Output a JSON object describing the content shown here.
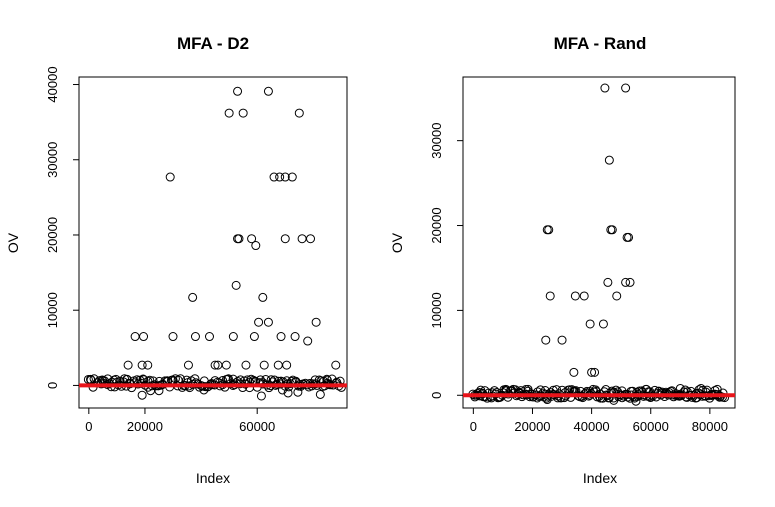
{
  "chart_data": [
    {
      "type": "scatter",
      "title": "MFA - D2",
      "xlabel": "Index",
      "ylabel": "OV",
      "xlim": [
        -3500,
        92000
      ],
      "ylim": [
        -3000,
        41000
      ],
      "xticks": [
        0,
        20000,
        60000
      ],
      "xtick_labels": [
        "0",
        "20000",
        "60000"
      ],
      "yticks": [
        0,
        10000,
        20000,
        30000,
        40000
      ],
      "ytick_labels": [
        "0",
        "10000",
        "20000",
        "30000",
        "40000"
      ],
      "reference_line": {
        "y": 0,
        "color": "#e8141a"
      },
      "band": {
        "x_start": 0,
        "x_end": 90000,
        "y_min": -300,
        "y_max": 900,
        "count": 170,
        "seed": 7
      },
      "series": [
        {
          "values": [
            {
              "x": 5000,
              "y": 600
            },
            {
              "x": 9000,
              "y": 700
            },
            {
              "x": 13500,
              "y": 800
            },
            {
              "x": 14000,
              "y": 2700
            },
            {
              "x": 16500,
              "y": 6500
            },
            {
              "x": 19500,
              "y": 6500
            },
            {
              "x": 19000,
              "y": 2700
            },
            {
              "x": 21000,
              "y": 2700
            },
            {
              "x": 19000,
              "y": -1300
            },
            {
              "x": 22000,
              "y": -700
            },
            {
              "x": 25000,
              "y": -700
            },
            {
              "x": 29000,
              "y": 27700
            },
            {
              "x": 30000,
              "y": 6500
            },
            {
              "x": 35500,
              "y": 2700
            },
            {
              "x": 37000,
              "y": 11700
            },
            {
              "x": 38000,
              "y": 6500
            },
            {
              "x": 41000,
              "y": -600
            },
            {
              "x": 43000,
              "y": 6500
            },
            {
              "x": 45000,
              "y": 2700
            },
            {
              "x": 46000,
              "y": 2700
            },
            {
              "x": 49000,
              "y": 2700
            },
            {
              "x": 50000,
              "y": 36200
            },
            {
              "x": 51500,
              "y": 6500
            },
            {
              "x": 52500,
              "y": 13300
            },
            {
              "x": 53000,
              "y": 19500
            },
            {
              "x": 53500,
              "y": 19500
            },
            {
              "x": 53000,
              "y": 39100
            },
            {
              "x": 55000,
              "y": 36200
            },
            {
              "x": 56000,
              "y": 2700
            },
            {
              "x": 58000,
              "y": 19500
            },
            {
              "x": 59000,
              "y": 6500
            },
            {
              "x": 59500,
              "y": 18600
            },
            {
              "x": 60500,
              "y": 8400
            },
            {
              "x": 61500,
              "y": -1400
            },
            {
              "x": 62000,
              "y": 11700
            },
            {
              "x": 62500,
              "y": 2700
            },
            {
              "x": 64000,
              "y": 39100
            },
            {
              "x": 64000,
              "y": 8400
            },
            {
              "x": 66000,
              "y": 27700
            },
            {
              "x": 67500,
              "y": 2700
            },
            {
              "x": 68000,
              "y": 27700
            },
            {
              "x": 68500,
              "y": 6500
            },
            {
              "x": 69000,
              "y": -600
            },
            {
              "x": 70000,
              "y": 27700
            },
            {
              "x": 70000,
              "y": 19500
            },
            {
              "x": 70500,
              "y": 2700
            },
            {
              "x": 71000,
              "y": -1000
            },
            {
              "x": 72500,
              "y": 27700
            },
            {
              "x": 73500,
              "y": 6500
            },
            {
              "x": 74500,
              "y": -900
            },
            {
              "x": 75000,
              "y": 36200
            },
            {
              "x": 76000,
              "y": 19500
            },
            {
              "x": 78000,
              "y": 5900
            },
            {
              "x": 79000,
              "y": 19500
            },
            {
              "x": 81000,
              "y": 8400
            },
            {
              "x": 82500,
              "y": -1200
            },
            {
              "x": 85000,
              "y": 700
            },
            {
              "x": 88000,
              "y": 2700
            }
          ]
        }
      ]
    },
    {
      "type": "scatter",
      "title": "MFA - Rand",
      "xlabel": "Index",
      "ylabel": "OV",
      "xlim": [
        -3500,
        88500
      ],
      "ylim": [
        -1500,
        37500
      ],
      "xticks": [
        0,
        20000,
        40000,
        60000,
        80000
      ],
      "xtick_labels": [
        "0",
        "20000",
        "40000",
        "60000",
        "80000"
      ],
      "yticks": [
        0,
        10000,
        20000,
        30000
      ],
      "ytick_labels": [
        "0",
        "10000",
        "20000",
        "30000"
      ],
      "reference_line": {
        "y": 0,
        "color": "#e8141a"
      },
      "band": {
        "x_start": 0,
        "x_end": 85000,
        "y_min": -350,
        "y_max": 700,
        "count": 220,
        "seed": 13
      },
      "series": [
        {
          "values": [
            {
              "x": 2500,
              "y": 600
            },
            {
              "x": 11000,
              "y": 700
            },
            {
              "x": 13500,
              "y": 700
            },
            {
              "x": 18500,
              "y": 700
            },
            {
              "x": 24500,
              "y": 6500
            },
            {
              "x": 25000,
              "y": 19500
            },
            {
              "x": 25500,
              "y": 19500
            },
            {
              "x": 26000,
              "y": 11700
            },
            {
              "x": 25000,
              "y": -500
            },
            {
              "x": 30000,
              "y": 6500
            },
            {
              "x": 34000,
              "y": 2700
            },
            {
              "x": 34500,
              "y": 11700
            },
            {
              "x": 37500,
              "y": 11700
            },
            {
              "x": 39500,
              "y": 8400
            },
            {
              "x": 40000,
              "y": 2700
            },
            {
              "x": 41000,
              "y": 2700
            },
            {
              "x": 44500,
              "y": 36200
            },
            {
              "x": 44000,
              "y": 8400
            },
            {
              "x": 45500,
              "y": 13300
            },
            {
              "x": 46000,
              "y": 27700
            },
            {
              "x": 46500,
              "y": 19500
            },
            {
              "x": 47000,
              "y": 19500
            },
            {
              "x": 47500,
              "y": -600
            },
            {
              "x": 48500,
              "y": 11700
            },
            {
              "x": 51500,
              "y": 13300
            },
            {
              "x": 51500,
              "y": 36200
            },
            {
              "x": 52000,
              "y": 18600
            },
            {
              "x": 52500,
              "y": 18600
            },
            {
              "x": 53000,
              "y": 13300
            },
            {
              "x": 55000,
              "y": -700
            },
            {
              "x": 58500,
              "y": 700
            },
            {
              "x": 70000,
              "y": 800
            },
            {
              "x": 77000,
              "y": 800
            },
            {
              "x": 82500,
              "y": 700
            }
          ]
        }
      ]
    }
  ]
}
